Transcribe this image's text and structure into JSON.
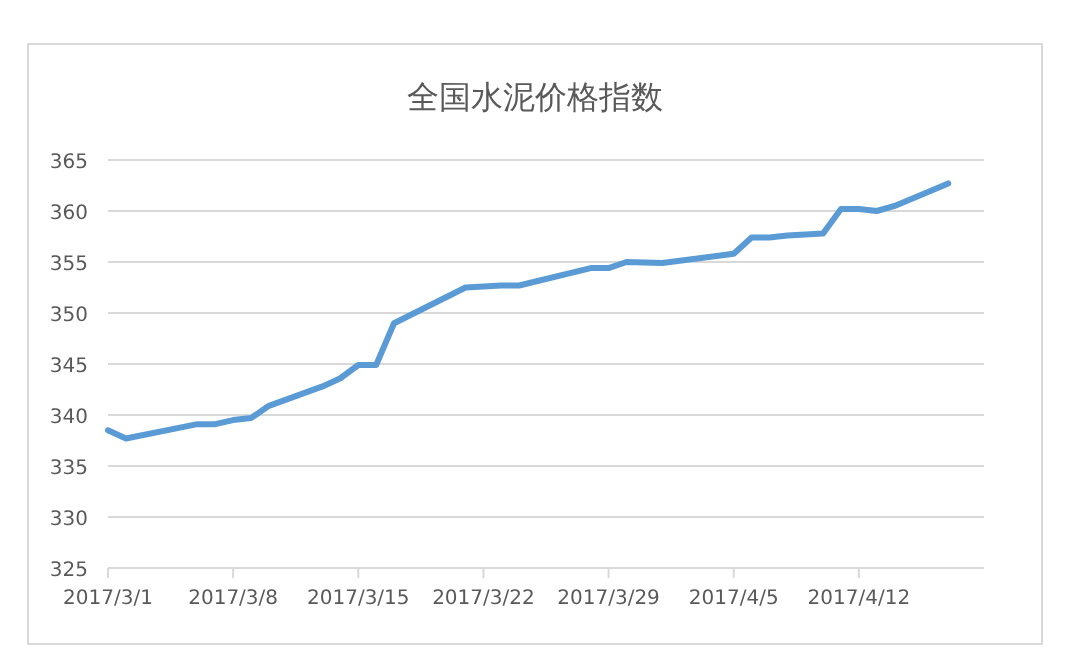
{
  "chart_data": {
    "type": "line",
    "title": "全国水泥价格指数",
    "x": [
      "2017-03-01",
      "2017-03-02",
      "2017-03-06",
      "2017-03-07",
      "2017-03-08",
      "2017-03-09",
      "2017-03-10",
      "2017-03-13",
      "2017-03-14",
      "2017-03-15",
      "2017-03-16",
      "2017-03-17",
      "2017-03-21",
      "2017-03-22",
      "2017-03-23",
      "2017-03-24",
      "2017-03-28",
      "2017-03-29",
      "2017-03-30",
      "2017-04-01",
      "2017-04-05",
      "2017-04-06",
      "2017-04-07",
      "2017-04-08",
      "2017-04-10",
      "2017-04-11",
      "2017-04-12",
      "2017-04-13",
      "2017-04-14",
      "2017-04-17"
    ],
    "series": [
      {
        "color": "#5b9bd5",
        "values": [
          338.5,
          337.7,
          339.1,
          339.1,
          339.5,
          339.7,
          340.9,
          342.8,
          343.6,
          344.9,
          344.9,
          349.0,
          352.5,
          352.6,
          352.7,
          352.7,
          354.4,
          354.4,
          355.0,
          354.9,
          355.8,
          357.4,
          357.4,
          357.6,
          357.8,
          360.2,
          360.2,
          360.0,
          360.5,
          362.7
        ]
      }
    ],
    "xlim": [
      "2017-03-01",
      "2017-04-19"
    ],
    "xticks": [
      {
        "value": "2017-03-01",
        "label": "2017/3/1"
      },
      {
        "value": "2017-03-08",
        "label": "2017/3/8"
      },
      {
        "value": "2017-03-15",
        "label": "2017/3/15"
      },
      {
        "value": "2017-03-22",
        "label": "2017/3/22"
      },
      {
        "value": "2017-03-29",
        "label": "2017/3/29"
      },
      {
        "value": "2017-04-05",
        "label": "2017/4/5"
      },
      {
        "value": "2017-04-12",
        "label": "2017/4/12"
      }
    ],
    "ylim": [
      325,
      365
    ],
    "yticks": [
      325,
      330,
      335,
      340,
      345,
      350,
      355,
      360,
      365
    ],
    "grid": "y",
    "marker": "none",
    "line_style": "solid"
  }
}
